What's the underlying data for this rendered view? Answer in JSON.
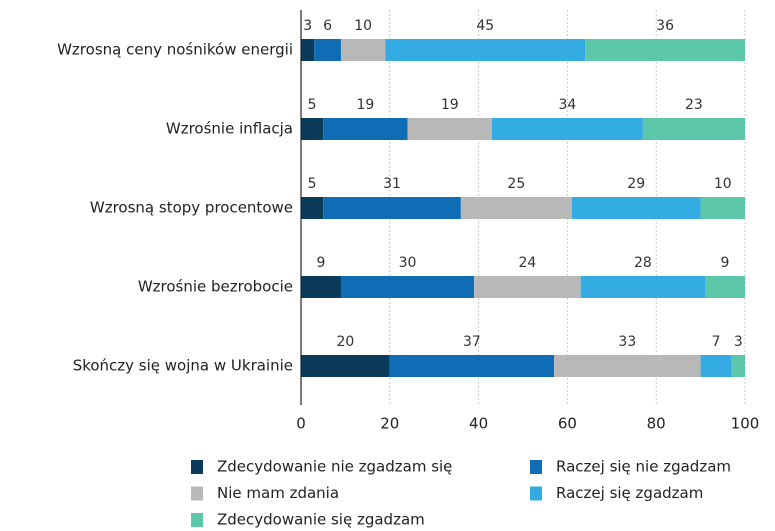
{
  "chart_data": {
    "type": "stacked_barh",
    "categories": [
      "Wzrosną ceny nośników energii",
      "Wzrośnie inflacja",
      "Wzrosną stopy procentowe",
      "Wzrośnie bezrobocie",
      "Skończy się wojna w Ukrainie"
    ],
    "series": [
      {
        "name": "Zdecydowanie nie zgadzam się",
        "color": "#0b3b5b",
        "values": [
          3,
          5,
          5,
          9,
          20
        ]
      },
      {
        "name": "Raczej się nie zgadzam",
        "color": "#0e6db5",
        "values": [
          6,
          19,
          31,
          30,
          37
        ]
      },
      {
        "name": "Nie mam zdania",
        "color": "#b8b8b8",
        "values": [
          10,
          19,
          25,
          24,
          33
        ]
      },
      {
        "name": "Raczej się zgadzam",
        "color": "#34abe2",
        "values": [
          45,
          34,
          29,
          28,
          7
        ]
      },
      {
        "name": "Zdecydowanie się zgadzam",
        "color": "#5cc7a9",
        "values": [
          36,
          23,
          10,
          9,
          3
        ]
      }
    ],
    "xlim": [
      0,
      100
    ],
    "xticks": [
      0,
      20,
      40,
      60,
      80,
      100
    ],
    "grid": true
  }
}
